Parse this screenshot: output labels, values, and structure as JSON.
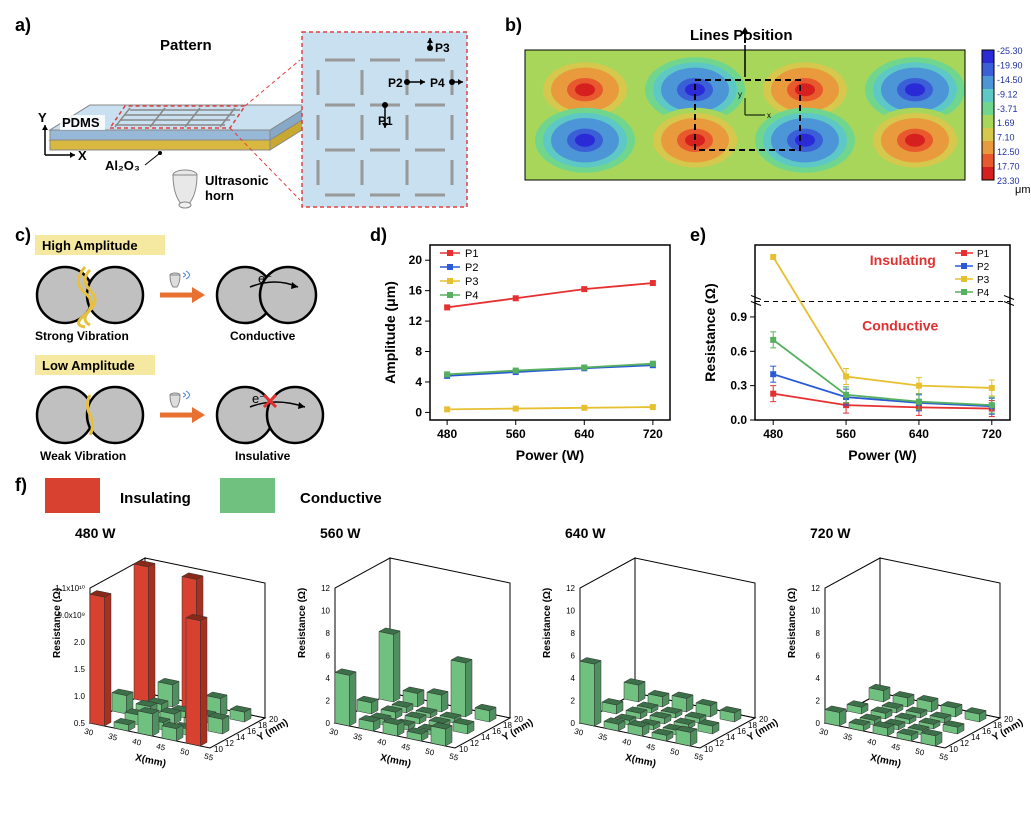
{
  "panels": {
    "a": {
      "label": "a)",
      "pattern_label": "Pattern",
      "pdms": "PDMS",
      "al2o3": "Al₂O₃",
      "horn": "Ultrasonic\nhorn",
      "axes": {
        "x": "X",
        "y": "Y"
      },
      "points": [
        "P1",
        "P2",
        "P3",
        "P4"
      ]
    },
    "b": {
      "label": "b)",
      "lines_pos": "Lines Position",
      "unit": "μm",
      "ticks": [
        -25.3,
        -19.9,
        -14.5,
        -9.12,
        -3.71,
        1.69,
        7.1,
        12.5,
        17.7,
        23.3
      ],
      "colors": [
        "#2a2ad6",
        "#3b5fd6",
        "#4c95d6",
        "#5ec8c7",
        "#70d68e",
        "#a8d65b",
        "#d6c84c",
        "#e89a3d",
        "#e85a2e",
        "#d62020"
      ]
    },
    "c": {
      "label": "c)",
      "high": "High Amplitude",
      "low": "Low Amplitude",
      "strong": "Strong Vibration",
      "weak": "Weak Vibration",
      "cond": "Conductive",
      "ins": "Insulative",
      "e": "e⁻"
    },
    "d": {
      "label": "d)",
      "xlabel": "Power (W)",
      "ylabel": "Amplitude (μm)",
      "xticks": [
        480,
        560,
        640,
        720
      ],
      "yticks": [
        0,
        4,
        8,
        12,
        16,
        20
      ],
      "xlim": [
        460,
        740
      ],
      "ylim": [
        -1,
        22
      ],
      "series": [
        {
          "name": "P1",
          "color": "#e63030",
          "marker": "square",
          "values": [
            [
              480,
              13.8
            ],
            [
              560,
              15.0
            ],
            [
              640,
              16.2
            ],
            [
              720,
              17.0
            ]
          ]
        },
        {
          "name": "P2",
          "color": "#2a5ad6",
          "marker": "diamond",
          "values": [
            [
              480,
              4.8
            ],
            [
              560,
              5.3
            ],
            [
              640,
              5.8
            ],
            [
              720,
              6.2
            ]
          ]
        },
        {
          "name": "P3",
          "color": "#e6c030",
          "marker": "triangle",
          "values": [
            [
              480,
              0.4
            ],
            [
              560,
              0.5
            ],
            [
              640,
              0.6
            ],
            [
              720,
              0.7
            ]
          ]
        },
        {
          "name": "P4",
          "color": "#56b060",
          "marker": "triangle-left",
          "values": [
            [
              480,
              5.0
            ],
            [
              560,
              5.5
            ],
            [
              640,
              5.9
            ],
            [
              720,
              6.4
            ]
          ]
        }
      ]
    },
    "e": {
      "label": "e)",
      "xlabel": "Power (W)",
      "ylabel": "Resistance (Ω)",
      "xticks": [
        480,
        560,
        640,
        720
      ],
      "yticks_low": [
        0,
        0.3,
        0.6,
        0.9
      ],
      "xlim": [
        460,
        740
      ],
      "ins_label": "Insulating",
      "cond_label": "Conductive",
      "series": [
        {
          "name": "P1",
          "color": "#e63030",
          "values": [
            [
              480,
              0.23
            ],
            [
              560,
              0.13
            ],
            [
              640,
              0.11
            ],
            [
              720,
              0.1
            ]
          ]
        },
        {
          "name": "P2",
          "color": "#2a5ad6",
          "values": [
            [
              480,
              0.4
            ],
            [
              560,
              0.2
            ],
            [
              640,
              0.15
            ],
            [
              720,
              0.12
            ]
          ]
        },
        {
          "name": "P3",
          "color": "#e6c030",
          "values": [
            [
              560,
              0.38
            ],
            [
              640,
              0.3
            ],
            [
              720,
              0.28
            ]
          ],
          "ins_point": [
            480,
            1.5
          ]
        },
        {
          "name": "P4",
          "color": "#56b060",
          "values": [
            [
              480,
              0.7
            ],
            [
              560,
              0.22
            ],
            [
              640,
              0.16
            ],
            [
              720,
              0.13
            ]
          ]
        }
      ]
    },
    "f": {
      "label": "f)",
      "ins": "Insulating",
      "cond": "Conductive",
      "ins_color": "#d84030",
      "cond_color": "#70c080",
      "titles": [
        "480 W",
        "560 W",
        "640 W",
        "720 W"
      ],
      "xlabel": "X(mm)",
      "ylabel": "Y (mm)",
      "zlabel": "Resistance (Ω)",
      "chart480": {
        "zticks": [
          "0.5",
          "1.0",
          "1.5",
          "2.0",
          "9.0x10⁹",
          "1.1x10¹⁰"
        ]
      },
      "zticks": [
        0,
        2,
        4,
        6,
        8,
        10,
        12
      ],
      "xticks": [
        30,
        35,
        40,
        45,
        50,
        55
      ],
      "yticks": [
        10,
        12,
        14,
        16,
        18,
        20
      ],
      "bars_480": [
        {
          "x": 30,
          "y": 10,
          "h": 10.5,
          "c": "r"
        },
        {
          "x": 30,
          "y": 14,
          "h": 1.5,
          "c": "g"
        },
        {
          "x": 30,
          "y": 18,
          "h": 11.0,
          "c": "r"
        },
        {
          "x": 35,
          "y": 10,
          "h": 0.5,
          "c": "g"
        },
        {
          "x": 35,
          "y": 12,
          "h": 0.8,
          "c": "g"
        },
        {
          "x": 35,
          "y": 14,
          "h": 1.0,
          "c": "g"
        },
        {
          "x": 35,
          "y": 16,
          "h": 0.7,
          "c": "g"
        },
        {
          "x": 35,
          "y": 18,
          "h": 1.8,
          "c": "g"
        },
        {
          "x": 40,
          "y": 10,
          "h": 1.8,
          "c": "g"
        },
        {
          "x": 40,
          "y": 12,
          "h": 0.6,
          "c": "g"
        },
        {
          "x": 40,
          "y": 14,
          "h": 0.8,
          "c": "g"
        },
        {
          "x": 40,
          "y": 16,
          "h": 0.5,
          "c": "g"
        },
        {
          "x": 40,
          "y": 18,
          "h": 10.8,
          "c": "r"
        },
        {
          "x": 45,
          "y": 10,
          "h": 1.0,
          "c": "g"
        },
        {
          "x": 45,
          "y": 12,
          "h": 0.5,
          "c": "g"
        },
        {
          "x": 45,
          "y": 14,
          "h": 0.7,
          "c": "g"
        },
        {
          "x": 45,
          "y": 16,
          "h": 0.6,
          "c": "g"
        },
        {
          "x": 45,
          "y": 18,
          "h": 1.5,
          "c": "g"
        },
        {
          "x": 50,
          "y": 10,
          "h": 10.2,
          "c": "r"
        },
        {
          "x": 50,
          "y": 14,
          "h": 1.2,
          "c": "g"
        },
        {
          "x": 50,
          "y": 18,
          "h": 0.8,
          "c": "g"
        }
      ],
      "bars_560": [
        {
          "x": 30,
          "y": 10,
          "h": 4.5
        },
        {
          "x": 30,
          "y": 14,
          "h": 1.0
        },
        {
          "x": 30,
          "y": 18,
          "h": 6.0
        },
        {
          "x": 35,
          "y": 10,
          "h": 0.8
        },
        {
          "x": 35,
          "y": 12,
          "h": 0.5
        },
        {
          "x": 35,
          "y": 14,
          "h": 0.6
        },
        {
          "x": 35,
          "y": 16,
          "h": 0.5
        },
        {
          "x": 35,
          "y": 18,
          "h": 1.2
        },
        {
          "x": 40,
          "y": 10,
          "h": 1.0
        },
        {
          "x": 40,
          "y": 12,
          "h": 0.4
        },
        {
          "x": 40,
          "y": 14,
          "h": 0.5
        },
        {
          "x": 40,
          "y": 16,
          "h": 0.4
        },
        {
          "x": 40,
          "y": 18,
          "h": 1.5
        },
        {
          "x": 45,
          "y": 10,
          "h": 0.6
        },
        {
          "x": 45,
          "y": 12,
          "h": 0.4
        },
        {
          "x": 45,
          "y": 14,
          "h": 0.5
        },
        {
          "x": 45,
          "y": 16,
          "h": 0.4
        },
        {
          "x": 45,
          "y": 18,
          "h": 4.8
        },
        {
          "x": 50,
          "y": 10,
          "h": 1.5
        },
        {
          "x": 50,
          "y": 14,
          "h": 0.8
        },
        {
          "x": 50,
          "y": 18,
          "h": 1.0
        }
      ],
      "bars_640": [
        {
          "x": 30,
          "y": 10,
          "h": 5.5
        },
        {
          "x": 30,
          "y": 14,
          "h": 0.8
        },
        {
          "x": 30,
          "y": 18,
          "h": 1.5
        },
        {
          "x": 35,
          "y": 10,
          "h": 0.6
        },
        {
          "x": 35,
          "y": 12,
          "h": 0.4
        },
        {
          "x": 35,
          "y": 14,
          "h": 0.5
        },
        {
          "x": 35,
          "y": 16,
          "h": 0.4
        },
        {
          "x": 35,
          "y": 18,
          "h": 0.9
        },
        {
          "x": 40,
          "y": 10,
          "h": 0.8
        },
        {
          "x": 40,
          "y": 12,
          "h": 0.4
        },
        {
          "x": 40,
          "y": 14,
          "h": 0.5
        },
        {
          "x": 40,
          "y": 16,
          "h": 0.4
        },
        {
          "x": 40,
          "y": 18,
          "h": 1.2
        },
        {
          "x": 45,
          "y": 10,
          "h": 0.5
        },
        {
          "x": 45,
          "y": 12,
          "h": 0.4
        },
        {
          "x": 45,
          "y": 14,
          "h": 0.4
        },
        {
          "x": 45,
          "y": 16,
          "h": 0.4
        },
        {
          "x": 45,
          "y": 18,
          "h": 1.0
        },
        {
          "x": 50,
          "y": 10,
          "h": 1.2
        },
        {
          "x": 50,
          "y": 14,
          "h": 0.7
        },
        {
          "x": 50,
          "y": 18,
          "h": 0.8
        }
      ],
      "bars_720": [
        {
          "x": 30,
          "y": 10,
          "h": 1.2
        },
        {
          "x": 30,
          "y": 14,
          "h": 0.6
        },
        {
          "x": 30,
          "y": 18,
          "h": 1.0
        },
        {
          "x": 35,
          "y": 10,
          "h": 0.5
        },
        {
          "x": 35,
          "y": 12,
          "h": 0.4
        },
        {
          "x": 35,
          "y": 14,
          "h": 0.5
        },
        {
          "x": 35,
          "y": 16,
          "h": 0.4
        },
        {
          "x": 35,
          "y": 18,
          "h": 0.8
        },
        {
          "x": 40,
          "y": 10,
          "h": 0.7
        },
        {
          "x": 40,
          "y": 12,
          "h": 0.4
        },
        {
          "x": 40,
          "y": 14,
          "h": 0.4
        },
        {
          "x": 40,
          "y": 16,
          "h": 0.4
        },
        {
          "x": 40,
          "y": 18,
          "h": 0.9
        },
        {
          "x": 45,
          "y": 10,
          "h": 0.5
        },
        {
          "x": 45,
          "y": 12,
          "h": 0.4
        },
        {
          "x": 45,
          "y": 14,
          "h": 0.4
        },
        {
          "x": 45,
          "y": 16,
          "h": 0.4
        },
        {
          "x": 45,
          "y": 18,
          "h": 0.8
        },
        {
          "x": 50,
          "y": 10,
          "h": 0.9
        },
        {
          "x": 50,
          "y": 14,
          "h": 0.6
        },
        {
          "x": 50,
          "y": 18,
          "h": 0.7
        }
      ]
    }
  }
}
